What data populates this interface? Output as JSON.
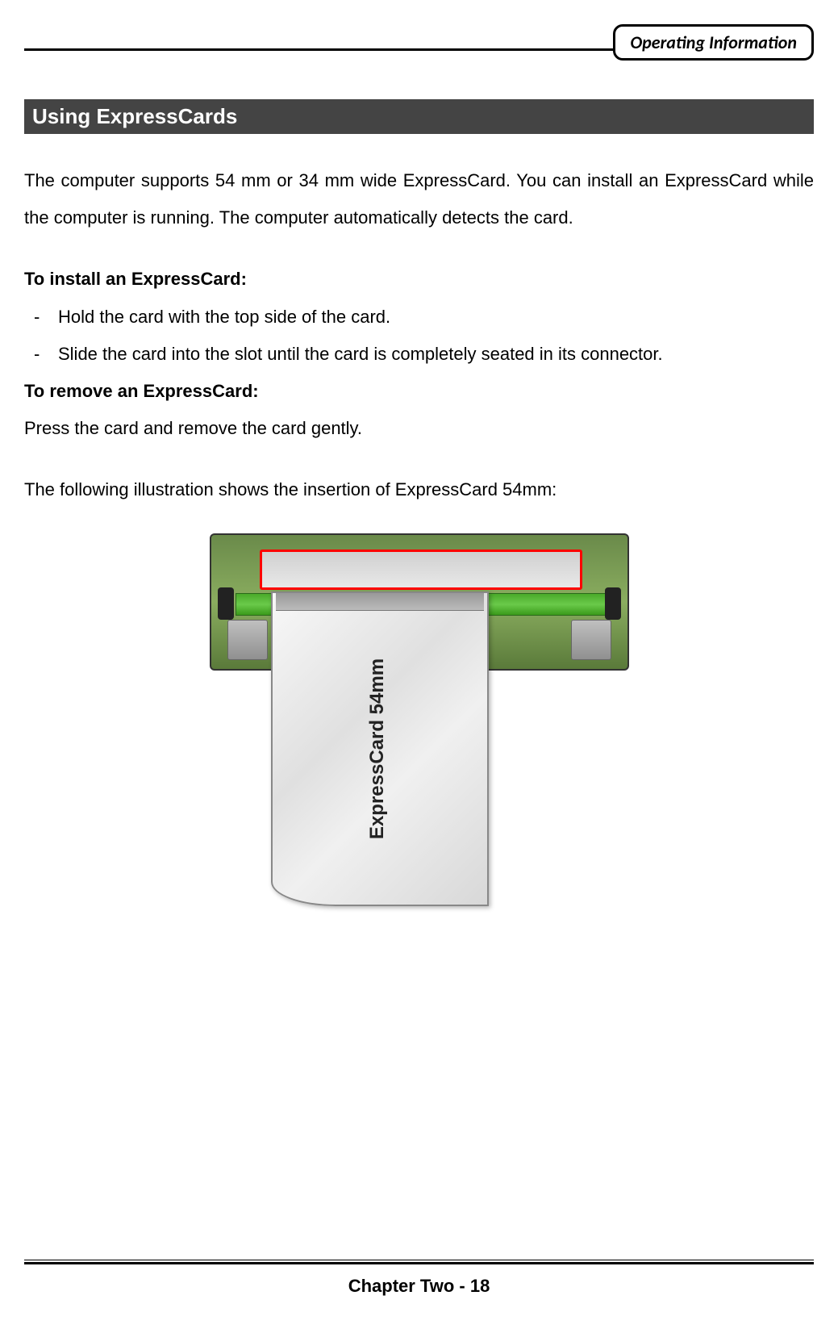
{
  "header": {
    "badge": "Operating Information"
  },
  "section": {
    "title": " Using ExpressCards",
    "intro": "The computer supports 54 mm or 34 mm wide ExpressCard. You can install an ExpressCard while the computer is running. The computer automatically detects the card.",
    "install_heading": "To install an ExpressCard:",
    "install_steps": [
      "Hold the card with the top side of the card.",
      "Slide the card into the slot until the card is completely seated in its connector."
    ],
    "remove_heading": "To remove an ExpressCard:",
    "remove_text": "Press the card and remove the card gently.",
    "illustration_intro": "The following illustration shows the insertion of ExpressCard 54mm:"
  },
  "illustration": {
    "card_label": "ExpressCard 54mm",
    "colors": {
      "slot_body_gradient": [
        "#6a8a4a",
        "#8aad5f",
        "#5a7a3a"
      ],
      "highlight_border": "#ff0000",
      "green_bar": [
        "#4aaa2a",
        "#6aca4a",
        "#3a9a1a"
      ],
      "card_gradient": [
        "#f8f8f8",
        "#e0e0e0",
        "#f0f0f0",
        "#d8d8d8"
      ]
    }
  },
  "footer": {
    "text": "Chapter Two - 18"
  }
}
